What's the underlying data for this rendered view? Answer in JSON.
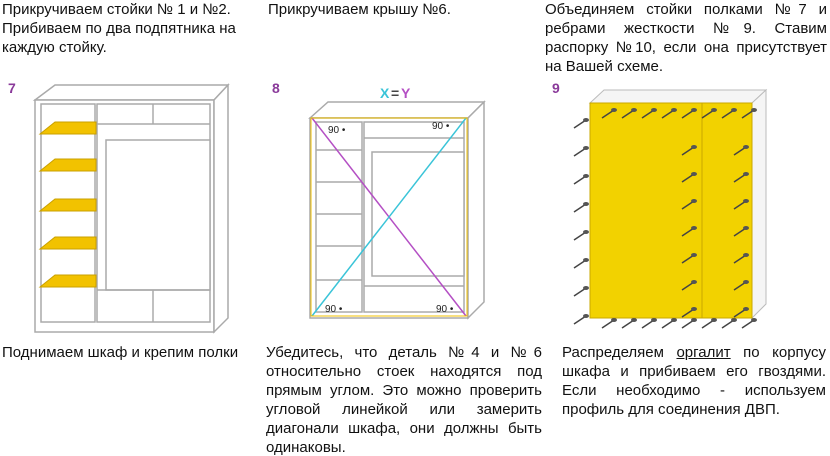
{
  "steps": [
    {
      "top": "Прикручиваем стойки № 1 и №2. Прибиваем по два подпятника на каждую стойку.",
      "number": "7",
      "bottom": "Поднимаем шкаф и крепим полки"
    },
    {
      "top": "Прикручиваем крышу №6.",
      "number": "8",
      "diagonal": {
        "x": "X",
        "eq": "=",
        "y": "Y"
      },
      "angles": [
        "90 •",
        "90 •",
        "90 •",
        "90 •"
      ],
      "bottom": "Убедитесь, что деталь №4 и №6 относительно стоек находятся под прямым углом. Это можно проверить угловой линейкой или замерить диагонали шкафа, они должны быть одинаковы."
    },
    {
      "top": "Объединяем стойки полками №7 и ребрами жесткости №9. Ставим распорку №10, если она присутствует на Вашей схеме.",
      "number": "9",
      "bottom_parts": [
        "Распределяем",
        "оргалит",
        "по корпусу шкафа и прибиваем его гвоздями. Если необходимо - используем профиль для соединения ДВП."
      ]
    }
  ]
}
